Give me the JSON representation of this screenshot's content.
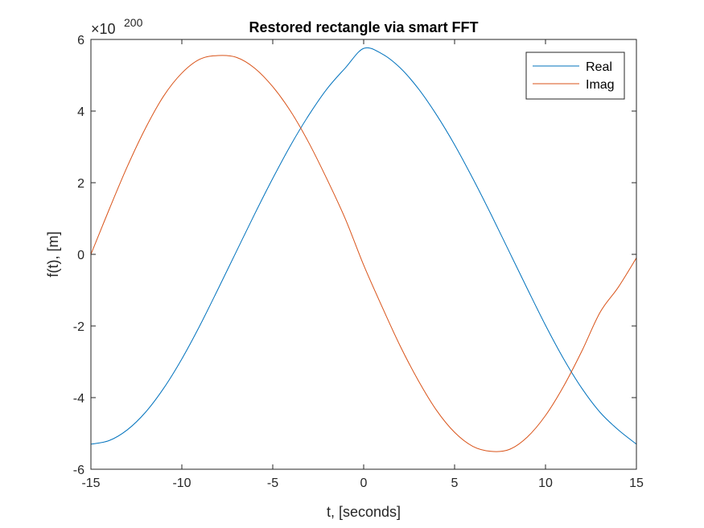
{
  "chart_data": {
    "type": "line",
    "title": "Restored rectangle via smart FFT",
    "xlabel": "t, [seconds]",
    "ylabel": "f(t), [m]",
    "xlim": [
      -15,
      15
    ],
    "ylim": [
      -6,
      6
    ],
    "y_exponent": {
      "base_text": "×10",
      "power": "200"
    },
    "xticks": [
      -15,
      -10,
      -5,
      0,
      5,
      10,
      15
    ],
    "xtick_labels": [
      "-15",
      "-10",
      "-5",
      "0",
      "5",
      "10",
      "15"
    ],
    "yticks": [
      -6,
      -4,
      -2,
      0,
      2,
      4,
      6
    ],
    "ytick_labels": [
      "-6",
      "-4",
      "-2",
      "0",
      "2",
      "4",
      "6"
    ],
    "grid": false,
    "legend_position": "top-right",
    "series": [
      {
        "name": "Real",
        "color": "#0072BD",
        "x": [
          -15,
          -14,
          -13,
          -12,
          -11,
          -10,
          -9,
          -8,
          -7,
          -6,
          -5,
          -4,
          -3,
          -2,
          -1,
          0,
          1,
          2,
          3,
          4,
          5,
          6,
          7,
          8,
          9,
          10,
          11,
          12,
          13,
          14,
          15
        ],
        "y": [
          -5.3,
          -5.2,
          -4.9,
          -4.41,
          -3.74,
          -2.92,
          -1.98,
          -0.96,
          0.08,
          1.12,
          2.12,
          3.06,
          3.9,
          4.63,
          5.21,
          5.75,
          5.6,
          5.21,
          4.63,
          3.9,
          3.06,
          2.12,
          1.12,
          0.08,
          -0.96,
          -1.98,
          -2.92,
          -3.74,
          -4.41,
          -4.9,
          -5.3
        ]
      },
      {
        "name": "Imag",
        "color": "#D95319",
        "x": [
          -15,
          -14,
          -13,
          -12,
          -11,
          -10,
          -9,
          -8,
          -7,
          -6,
          -5,
          -4,
          -3,
          -2,
          -1,
          0,
          1,
          2,
          3,
          4,
          5,
          6,
          7,
          8,
          9,
          10,
          11,
          12,
          13,
          14,
          15
        ],
        "y": [
          0.0,
          1.25,
          2.45,
          3.52,
          4.42,
          5.06,
          5.45,
          5.55,
          5.5,
          5.2,
          4.68,
          3.98,
          3.1,
          2.08,
          0.98,
          -0.3,
          -1.45,
          -2.55,
          -3.52,
          -4.35,
          -4.97,
          -5.36,
          -5.5,
          -5.45,
          -5.1,
          -4.5,
          -3.68,
          -2.7,
          -1.62,
          -0.92,
          -0.1
        ]
      }
    ]
  }
}
